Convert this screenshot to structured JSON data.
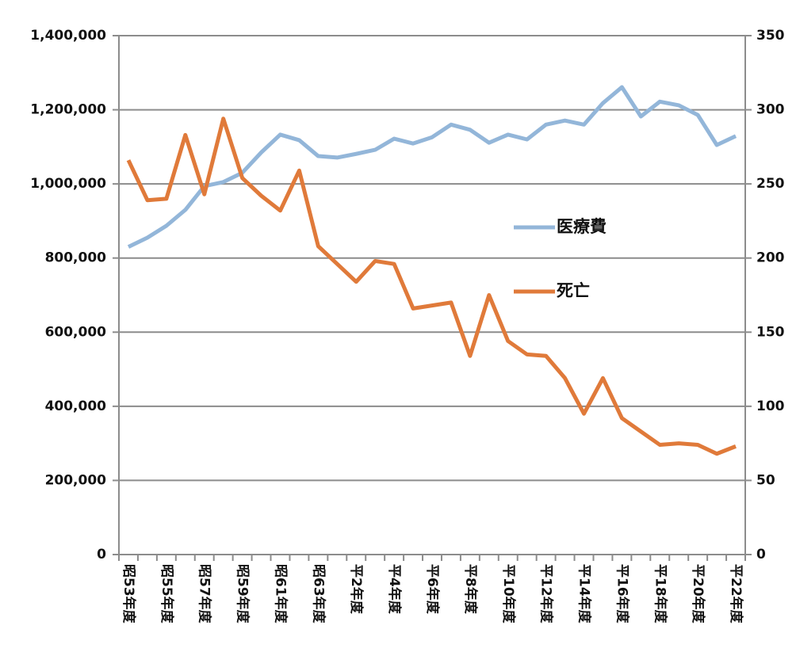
{
  "chart_data": {
    "type": "line",
    "categories": [
      "昭53年度",
      null,
      "昭55年度",
      null,
      "昭57年度",
      null,
      "昭59年度",
      null,
      "昭61年度",
      null,
      "昭63年度",
      null,
      "平2年度",
      null,
      "平4年度",
      null,
      "平6年度",
      null,
      "平8年度",
      null,
      "平10年度",
      null,
      "平12年度",
      null,
      "平14年度",
      null,
      "平16年度",
      null,
      "平18年度",
      null,
      "平20年度",
      null,
      "平22年度"
    ],
    "series": [
      {
        "name": "医療費",
        "color": "#93b6d9",
        "values": [
          830000,
          855000,
          887000,
          930000,
          994000,
          1005000,
          1030000,
          1085000,
          1133000,
          1118000,
          1075000,
          1071000,
          1081000,
          1092000,
          1122000,
          1109000,
          1126000,
          1160000,
          1146000,
          1111000,
          1133000,
          1120000,
          1160000,
          1171000,
          1160000,
          1218000,
          1261000,
          1182000,
          1222000,
          1212000,
          1186000,
          1105000,
          1129000
        ]
      },
      {
        "name": "死亡",
        "color": "#e07a3a",
        "axis": "y2",
        "values": [
          266,
          239,
          240,
          283,
          243,
          294,
          254,
          242,
          232,
          259,
          208,
          196,
          184,
          198,
          196,
          166,
          168,
          170,
          134,
          175,
          144,
          135,
          134,
          119,
          95,
          119,
          92,
          83,
          74,
          75,
          74,
          68,
          73
        ]
      }
    ],
    "ylim": [
      0,
      1400000
    ],
    "yticks": [
      0,
      {
        "value": 200000,
        "label": "200,000"
      },
      {
        "value": 400000,
        "label": "400,000"
      },
      {
        "value": 600000,
        "label": "600,000"
      },
      {
        "value": 800000,
        "label": "800,000"
      },
      {
        "value": 1000000,
        "label": "1,000,000"
      },
      {
        "value": 1200000,
        "label": "1,200,000"
      },
      {
        "value": 1400000,
        "label": "1,400,000"
      }
    ],
    "y2lim": [
      0,
      350
    ],
    "y2ticks": [
      0,
      50,
      100,
      150,
      200,
      250,
      300,
      350
    ],
    "grid": true
  }
}
